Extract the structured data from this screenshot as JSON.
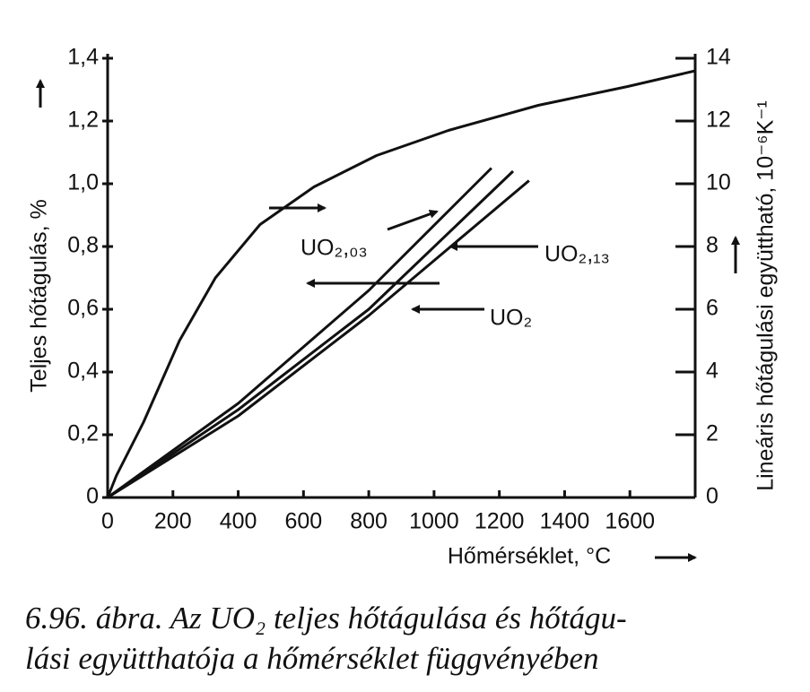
{
  "chart_data": {
    "type": "line",
    "x_label": "Hőmérséklet, °C",
    "y_label": "Teljes hőtágulás, %",
    "y2_label": "Lineáris hőtágulási együttható, 10⁻⁶K⁻¹",
    "caption": [
      "6.96. ábra. Az UO₂ teljes hőtágulása és hőtágu-",
      "lási együtthatója a hőmérséklet függvényében"
    ],
    "xlim": [
      0,
      1800
    ],
    "xticks": [
      0,
      200,
      400,
      600,
      800,
      1000,
      1200,
      1400,
      1600
    ],
    "ylim": [
      0,
      1.4
    ],
    "yticks": [
      0,
      {
        "value": 0.2,
        "label": "0,2"
      },
      {
        "value": 0.4,
        "label": "0,4"
      },
      {
        "value": 0.6,
        "label": "0,6"
      },
      {
        "value": 0.8,
        "label": "0,8"
      },
      {
        "value": 1.0,
        "label": "1,0"
      },
      {
        "value": 1.2,
        "label": "1,2"
      },
      {
        "value": 1.4,
        "label": "1,4"
      }
    ],
    "y2lim": [
      0,
      14
    ],
    "y2ticks": [
      0,
      2,
      4,
      6,
      8,
      10,
      12,
      14
    ],
    "series": [
      {
        "color": "#111111",
        "axis": "y2",
        "x": [
          0,
          27,
          110,
          220,
          330,
          467,
          632,
          824,
          1044,
          1319,
          1593,
          1800
        ],
        "values": [
          0,
          0.7,
          2.4,
          5.0,
          7.0,
          8.7,
          9.9,
          10.9,
          11.7,
          12.5,
          13.1,
          13.6
        ]
      },
      {
        "name": "UO₂,₀₃",
        "color": "#111111",
        "x": [
          0,
          400,
          800,
          1176
        ],
        "values": [
          0,
          0.3,
          0.66,
          1.05
        ]
      },
      {
        "name": "UO₂,₁₃",
        "color": "#111111",
        "x": [
          0,
          400,
          800,
          1242
        ],
        "values": [
          0,
          0.28,
          0.6,
          1.04
        ]
      },
      {
        "name": "UO₂",
        "color": "#111111",
        "x": [
          0,
          400,
          800,
          1291
        ],
        "values": [
          0,
          0.26,
          0.58,
          1.01
        ]
      }
    ]
  }
}
